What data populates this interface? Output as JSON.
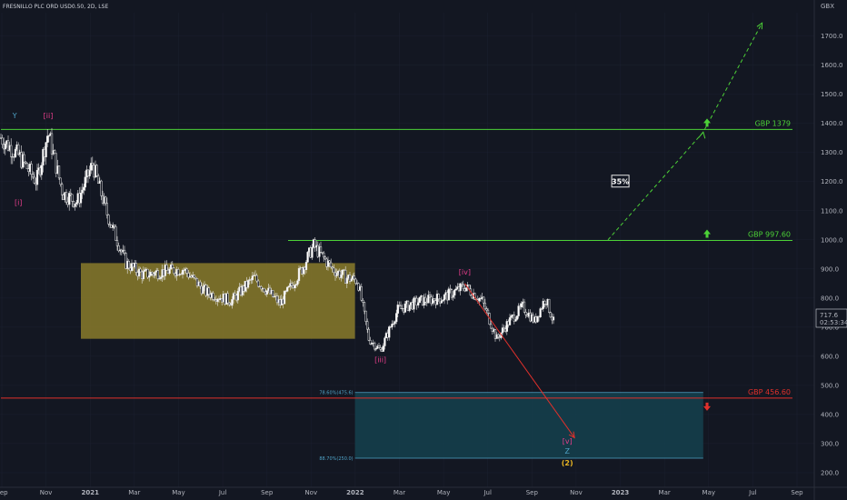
{
  "header": {
    "symbol_line": "FRESNILLO PLC ORD USD0.50, 2D, LSE"
  },
  "colors": {
    "background": "#131722",
    "candle": "#e6e6e6",
    "green": "#4cd137",
    "red": "#e0302b",
    "zone_yellow": "#8a7b2a",
    "zone_blue": "#15414d",
    "cyan": "#4fa3c7"
  },
  "chart_data": {
    "type": "candlestick",
    "currency": "GBX",
    "x_ticks": [
      "Sep",
      "Nov",
      "2021",
      "Mar",
      "May",
      "Jul",
      "Sep",
      "Nov",
      "2022",
      "Mar",
      "May",
      "Jul",
      "Sep",
      "Nov",
      "2023",
      "Mar",
      "May",
      "Jul",
      "Sep"
    ],
    "x_range": [
      "2020-09-01",
      "2023-09-01"
    ],
    "y_ticks": [
      200,
      300,
      400,
      500,
      600,
      700,
      800,
      900,
      1000,
      1100,
      1200,
      1300,
      1400,
      1500,
      1600,
      1700
    ],
    "y_range": [
      150,
      1780
    ],
    "last_price": "717.6",
    "countdown": "02:53:34",
    "price_keypoints": [
      {
        "date": "2020-09-01",
        "price": 1350
      },
      {
        "date": "2020-09-25",
        "price": 1290
      },
      {
        "date": "2020-10-20",
        "price": 1200
      },
      {
        "date": "2020-11-05",
        "price": 1370
      },
      {
        "date": "2020-11-25",
        "price": 1160
      },
      {
        "date": "2020-12-15",
        "price": 1130
      },
      {
        "date": "2021-01-05",
        "price": 1260
      },
      {
        "date": "2021-01-25",
        "price": 1090
      },
      {
        "date": "2021-02-20",
        "price": 920
      },
      {
        "date": "2021-03-15",
        "price": 880
      },
      {
        "date": "2021-04-10",
        "price": 890
      },
      {
        "date": "2021-05-10",
        "price": 900
      },
      {
        "date": "2021-06-10",
        "price": 820
      },
      {
        "date": "2021-07-15",
        "price": 790
      },
      {
        "date": "2021-08-15",
        "price": 870
      },
      {
        "date": "2021-09-20",
        "price": 780
      },
      {
        "date": "2021-10-20",
        "price": 900
      },
      {
        "date": "2021-11-05",
        "price": 980
      },
      {
        "date": "2021-12-01",
        "price": 900
      },
      {
        "date": "2021-12-20",
        "price": 870
      },
      {
        "date": "2022-01-05",
        "price": 860
      },
      {
        "date": "2022-01-20",
        "price": 660
      },
      {
        "date": "2022-02-05",
        "price": 620
      },
      {
        "date": "2022-03-01",
        "price": 760
      },
      {
        "date": "2022-04-01",
        "price": 790
      },
      {
        "date": "2022-05-01",
        "price": 800
      },
      {
        "date": "2022-06-01",
        "price": 840
      },
      {
        "date": "2022-06-25",
        "price": 790
      },
      {
        "date": "2022-07-15",
        "price": 660
      },
      {
        "date": "2022-08-01",
        "price": 720
      },
      {
        "date": "2022-08-20",
        "price": 770
      },
      {
        "date": "2022-09-05",
        "price": 720
      },
      {
        "date": "2022-09-20",
        "price": 800
      },
      {
        "date": "2022-10-01",
        "price": 717.6
      }
    ],
    "levels": [
      {
        "label": "GBP 1379",
        "price": 1379,
        "start": "2020-09-01",
        "color": "#4cd137",
        "arrow": "up"
      },
      {
        "label": "GBP 997.60",
        "price": 997.6,
        "start": "2021-10-01",
        "color": "#4cd137",
        "arrow": "up"
      },
      {
        "label": "GBP 456.60",
        "price": 456.6,
        "start": "2020-09-01",
        "color": "#e0302b",
        "arrow": "down"
      }
    ],
    "zones": [
      {
        "name": "yellow-box",
        "from_date": "2020-12-20",
        "to_date": "2022-01-01",
        "top": 920,
        "bottom": 660,
        "color": "#8a7b2a"
      },
      {
        "name": "blue-box",
        "from_date": "2022-01-01",
        "to_date": "2023-04-25",
        "top": 475.6,
        "bottom": 250,
        "color": "#15414d"
      }
    ],
    "fib_labels": [
      {
        "text": "78.60%(475.6)",
        "price": 475.6
      },
      {
        "text": "88.70%(250.0)",
        "price": 250
      }
    ],
    "wave_labels": [
      {
        "text": "Y",
        "date": "2020-09-20",
        "price": 1418,
        "color": "#4fa3c7"
      },
      {
        "text": "[ii]",
        "date": "2020-11-05",
        "price": 1418,
        "color": "#e83e8c"
      },
      {
        "text": "[i]",
        "date": "2020-09-25",
        "price": 1120,
        "color": "#e83e8c"
      },
      {
        "text": "[iii]",
        "date": "2022-02-05",
        "price": 580,
        "color": "#e83e8c"
      },
      {
        "text": "[iv]",
        "date": "2022-06-01",
        "price": 880,
        "color": "#e83e8c"
      },
      {
        "text": "[v]",
        "date": "2022-10-20",
        "price": 300,
        "color": "#e83e8c"
      },
      {
        "text": "Z",
        "date": "2022-10-20",
        "price": 265,
        "color": "#4fa3c7"
      },
      {
        "text": "(2)",
        "date": "2022-10-20",
        "price": 225,
        "color": "#e6b422"
      }
    ],
    "projections": [
      {
        "name": "red-projection",
        "color": "#e0302b",
        "dashed": false,
        "points": [
          [
            "2022-06-01",
            850
          ],
          [
            "2022-10-30",
            320
          ]
        ]
      },
      {
        "name": "green-projection",
        "color": "#4cd137",
        "dashed": true,
        "points": [
          [
            "2022-12-15",
            1000
          ],
          [
            "2023-04-25",
            1370
          ],
          [
            "2023-07-15",
            1745
          ]
        ]
      }
    ],
    "annotation": {
      "text": "35%",
      "date": "2023-01-01",
      "price": 1200
    }
  }
}
